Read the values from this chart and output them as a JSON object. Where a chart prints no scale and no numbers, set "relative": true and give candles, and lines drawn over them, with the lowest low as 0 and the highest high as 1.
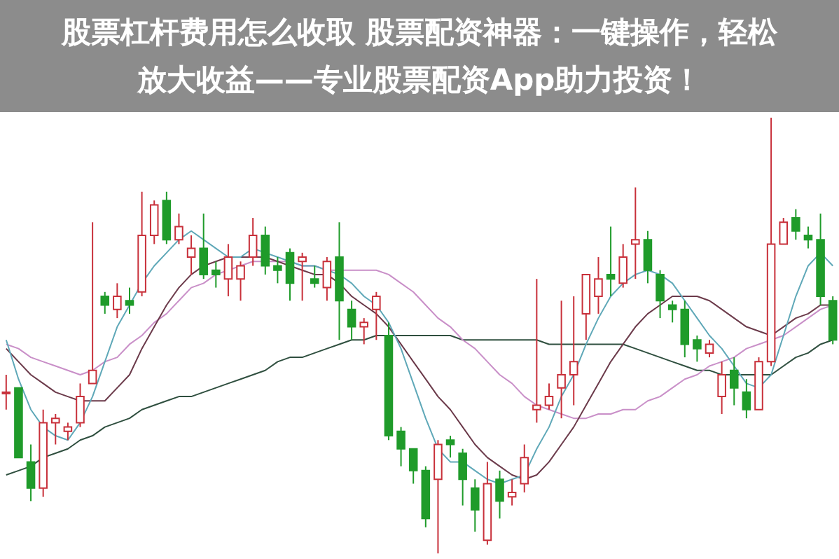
{
  "chart_data": {
    "type": "candlestick",
    "title": "股票杠杆费用怎么收取 股票配资神器：一键操作，轻松放大收益——专业股票配资App助力投资！",
    "relative": true,
    "tick_labels": false,
    "marker": "none",
    "categories": [
      null,
      null,
      null,
      null,
      null,
      null,
      null,
      null,
      null,
      null,
      null,
      null,
      null,
      null,
      null,
      null,
      null,
      null,
      null,
      null,
      null,
      null,
      null,
      null,
      null,
      null,
      null,
      null,
      null,
      null,
      null,
      null,
      null,
      null,
      null,
      null,
      null,
      null,
      null,
      null,
      null,
      null,
      null,
      null,
      null,
      null,
      null,
      null,
      null,
      null,
      null,
      null,
      null,
      null,
      null,
      null,
      null,
      null,
      null,
      null,
      null,
      null,
      null,
      null,
      null,
      null,
      null,
      null
    ],
    "ohlc": [
      [
        0.37,
        0.41,
        0.33,
        0.37
      ],
      [
        0.38,
        0.38,
        0.22,
        0.22
      ],
      [
        0.21,
        0.25,
        0.12,
        0.15
      ],
      [
        0.15,
        0.33,
        0.13,
        0.3
      ],
      [
        0.3,
        0.32,
        0.25,
        0.31
      ],
      [
        0.28,
        0.3,
        0.26,
        0.29
      ],
      [
        0.3,
        0.39,
        0.29,
        0.36
      ],
      [
        0.39,
        0.76,
        0.39,
        0.42
      ],
      [
        0.59,
        0.6,
        0.55,
        0.57
      ],
      [
        0.56,
        0.62,
        0.54,
        0.59
      ],
      [
        0.58,
        0.61,
        0.55,
        0.57
      ],
      [
        0.6,
        0.83,
        0.59,
        0.73
      ],
      [
        0.73,
        0.81,
        0.71,
        0.8
      ],
      [
        0.81,
        0.83,
        0.71,
        0.72
      ],
      [
        0.72,
        0.78,
        0.71,
        0.75
      ],
      [
        0.68,
        0.73,
        0.64,
        0.7
      ],
      [
        0.7,
        0.78,
        0.63,
        0.64
      ],
      [
        0.65,
        0.67,
        0.61,
        0.64
      ],
      [
        0.63,
        0.71,
        0.59,
        0.68
      ],
      [
        0.63,
        0.67,
        0.58,
        0.66
      ],
      [
        0.68,
        0.77,
        0.66,
        0.73
      ],
      [
        0.73,
        0.75,
        0.64,
        0.66
      ],
      [
        0.66,
        0.68,
        0.62,
        0.65
      ],
      [
        0.69,
        0.7,
        0.58,
        0.62
      ],
      [
        0.67,
        0.69,
        0.58,
        0.68
      ],
      [
        0.63,
        0.66,
        0.61,
        0.62
      ],
      [
        0.61,
        0.68,
        0.58,
        0.67
      ],
      [
        0.68,
        0.76,
        0.49,
        0.58
      ],
      [
        0.56,
        0.58,
        0.49,
        0.52
      ],
      [
        0.52,
        0.54,
        0.48,
        0.53
      ],
      [
        0.56,
        0.6,
        0.49,
        0.59
      ],
      [
        0.5,
        0.53,
        0.26,
        0.27
      ],
      [
        0.28,
        0.29,
        0.2,
        0.24
      ],
      [
        0.24,
        0.24,
        0.16,
        0.19
      ],
      [
        0.19,
        0.2,
        0.06,
        0.08
      ],
      [
        0.17,
        0.26,
        0,
        0.25
      ],
      [
        0.26,
        0.27,
        0.22,
        0.25
      ],
      [
        0.23,
        0.24,
        0.11,
        0.17
      ],
      [
        0.15,
        0.17,
        0.05,
        0.1
      ],
      [
        0.03,
        0.21,
        0.02,
        0.16
      ],
      [
        0.17,
        0.19,
        0.08,
        0.12
      ],
      [
        0.13,
        0.17,
        0.11,
        0.14
      ],
      [
        0.16,
        0.25,
        0.14,
        0.22
      ],
      [
        0.33,
        0.63,
        0.3,
        0.34
      ],
      [
        0.34,
        0.39,
        0.33,
        0.36
      ],
      [
        0.38,
        0.58,
        0.31,
        0.41
      ],
      [
        0.41,
        0.59,
        0.34,
        0.44
      ],
      [
        0.55,
        0.64,
        0.49,
        0.64
      ],
      [
        0.59,
        0.68,
        0.55,
        0.63
      ],
      [
        0.64,
        0.75,
        0.59,
        0.63
      ],
      [
        0.62,
        0.71,
        0.61,
        0.68
      ],
      [
        0.71,
        0.84,
        0.63,
        0.72
      ],
      [
        0.72,
        0.74,
        0.62,
        0.65
      ],
      [
        0.64,
        0.65,
        0.54,
        0.58
      ],
      [
        0.57,
        0.58,
        0.53,
        0.56
      ],
      [
        0.56,
        0.58,
        0.45,
        0.48
      ],
      [
        0.49,
        0.5,
        0.44,
        0.47
      ],
      [
        0.46,
        0.49,
        0.45,
        0.48
      ],
      [
        0.36,
        0.44,
        0.32,
        0.41
      ],
      [
        0.42,
        0.45,
        0.34,
        0.38
      ],
      [
        0.37,
        0.4,
        0.31,
        0.33
      ],
      [
        0.33,
        0.45,
        0.33,
        0.44
      ],
      [
        0.44,
        1,
        0.43,
        0.71
      ],
      [
        0.71,
        0.77,
        0.71,
        0.76
      ],
      [
        0.77,
        0.79,
        0.72,
        0.74
      ],
      [
        0.73,
        0.75,
        0.7,
        0.72
      ],
      [
        0.72,
        0.78,
        0.57,
        0.59
      ],
      [
        0.58,
        0.59,
        0.48,
        0.49
      ]
    ],
    "colors": [
      "#c8303a",
      "#1f9b2a",
      "#1f9b2a",
      "#c8303a",
      "#c8303a",
      "#c8303a",
      "#c8303a",
      "#c8303a",
      "#1f9b2a",
      "#c8303a",
      "#1f9b2a",
      "#c8303a",
      "#c8303a",
      "#1f9b2a",
      "#c8303a",
      "#c8303a",
      "#1f9b2a",
      "#1f9b2a",
      "#c8303a",
      "#c8303a",
      "#c8303a",
      "#1f9b2a",
      "#1f9b2a",
      "#1f9b2a",
      "#c8303a",
      "#1f9b2a",
      "#c8303a",
      "#1f9b2a",
      "#1f9b2a",
      "#c8303a",
      "#c8303a",
      "#1f9b2a",
      "#1f9b2a",
      "#1f9b2a",
      "#1f9b2a",
      "#c8303a",
      "#1f9b2a",
      "#1f9b2a",
      "#1f9b2a",
      "#c8303a",
      "#1f9b2a",
      "#c8303a",
      "#c8303a",
      "#c8303a",
      "#c8303a",
      "#c8303a",
      "#c8303a",
      "#c8303a",
      "#c8303a",
      "#1f9b2a",
      "#c8303a",
      "#c8303a",
      "#1f9b2a",
      "#1f9b2a",
      "#1f9b2a",
      "#1f9b2a",
      "#1f9b2a",
      "#c8303a",
      "#c8303a",
      "#1f9b2a",
      "#1f9b2a",
      "#c8303a",
      "#c8303a",
      "#c8303a",
      "#1f9b2a",
      "#1f9b2a",
      "#1f9b2a",
      "#1f9b2a"
    ],
    "series": [
      {
        "type": "line",
        "color": "#5fa8b8",
        "values": [
          0.49,
          0.4,
          0.33,
          0.29,
          0.27,
          0.26,
          0.3,
          0.36,
          0.44,
          0.52,
          0.57,
          0.62,
          0.66,
          0.69,
          0.72,
          0.74,
          0.72,
          0.7,
          0.68,
          0.68,
          0.7,
          0.69,
          0.68,
          0.67,
          0.66,
          0.66,
          0.65,
          0.64,
          0.62,
          0.59,
          0.57,
          0.53,
          0.47,
          0.39,
          0.31,
          0.24,
          0.21,
          0.21,
          0.19,
          0.17,
          0.16,
          0.17,
          0.18,
          0.24,
          0.29,
          0.36,
          0.41,
          0.48,
          0.54,
          0.59,
          0.62,
          0.64,
          0.65,
          0.64,
          0.62,
          0.58,
          0.54,
          0.5,
          0.47,
          0.43,
          0.39,
          0.38,
          0.41,
          0.5,
          0.59,
          0.66,
          0.69,
          0.66
        ]
      },
      {
        "type": "line",
        "color": "#6b3a4a",
        "values": [
          0.47,
          0.44,
          0.41,
          0.39,
          0.37,
          0.36,
          0.35,
          0.35,
          0.35,
          0.38,
          0.41,
          0.47,
          0.52,
          0.57,
          0.61,
          0.64,
          0.66,
          0.67,
          0.68,
          0.68,
          0.68,
          0.68,
          0.67,
          0.66,
          0.65,
          0.64,
          0.64,
          0.62,
          0.59,
          0.57,
          0.55,
          0.52,
          0.48,
          0.44,
          0.4,
          0.36,
          0.33,
          0.29,
          0.25,
          0.22,
          0.2,
          0.18,
          0.17,
          0.18,
          0.21,
          0.25,
          0.29,
          0.34,
          0.39,
          0.44,
          0.48,
          0.52,
          0.55,
          0.57,
          0.59,
          0.59,
          0.59,
          0.58,
          0.56,
          0.54,
          0.52,
          0.51,
          0.5,
          0.52,
          0.54,
          0.55,
          0.57,
          0.57
        ]
      },
      {
        "type": "line",
        "color": "#c98fc8",
        "values": [
          0.48,
          0.47,
          0.45,
          0.44,
          0.43,
          0.42,
          0.41,
          0.42,
          0.44,
          0.45,
          0.48,
          0.5,
          0.53,
          0.55,
          0.58,
          0.61,
          0.62,
          0.64,
          0.65,
          0.66,
          0.67,
          0.67,
          0.67,
          0.67,
          0.66,
          0.66,
          0.65,
          0.65,
          0.65,
          0.65,
          0.65,
          0.64,
          0.62,
          0.6,
          0.57,
          0.54,
          0.52,
          0.49,
          0.47,
          0.44,
          0.41,
          0.39,
          0.36,
          0.34,
          0.33,
          0.32,
          0.31,
          0.31,
          0.32,
          0.32,
          0.33,
          0.33,
          0.35,
          0.36,
          0.38,
          0.4,
          0.41,
          0.43,
          0.44,
          0.45,
          0.47,
          0.48,
          0.49,
          0.5,
          0.52,
          0.54,
          0.56,
          0.57
        ]
      },
      {
        "type": "line",
        "color": "#2f4f3f",
        "values": [
          0.18,
          0.19,
          0.2,
          0.22,
          0.23,
          0.24,
          0.26,
          0.27,
          0.29,
          0.3,
          0.31,
          0.33,
          0.34,
          0.35,
          0.36,
          0.36,
          0.37,
          0.38,
          0.39,
          0.4,
          0.41,
          0.42,
          0.44,
          0.45,
          0.45,
          0.46,
          0.47,
          0.48,
          0.49,
          0.49,
          0.5,
          0.5,
          0.5,
          0.5,
          0.5,
          0.5,
          0.5,
          0.49,
          0.49,
          0.49,
          0.49,
          0.49,
          0.49,
          0.49,
          0.48,
          0.48,
          0.48,
          0.48,
          0.48,
          0.48,
          0.48,
          0.47,
          0.46,
          0.45,
          0.44,
          0.43,
          0.42,
          0.42,
          0.41,
          0.41,
          0.41,
          0.41,
          0.41,
          0.43,
          0.45,
          0.46,
          0.48,
          0.49
        ]
      }
    ]
  }
}
